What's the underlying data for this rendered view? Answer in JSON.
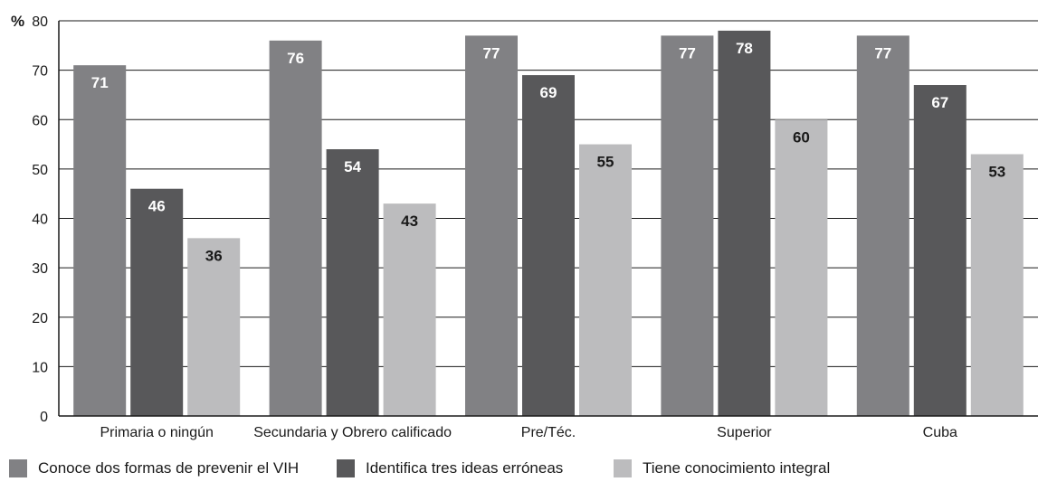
{
  "chart_data": {
    "type": "bar",
    "y_unit": "%",
    "ylim": [
      0,
      80
    ],
    "yticks": [
      "0",
      "10",
      "20",
      "30",
      "40",
      "50",
      "60",
      "70",
      "80"
    ],
    "categories": [
      "Primaria o ningún",
      "Secundaria y Obrero calificado",
      "Pre/Téc.",
      "Superior",
      "Cuba"
    ],
    "series": [
      {
        "name": "Conoce dos formas de prevenir el VIH",
        "color": "#818184",
        "values": [
          71,
          76,
          77,
          77,
          77
        ]
      },
      {
        "name": "Identifica tres ideas erróneas",
        "color": "#58585a",
        "values": [
          46,
          54,
          69,
          78,
          67
        ]
      },
      {
        "name": "Tiene conocimiento integral",
        "color": "#bcbcbe",
        "values": [
          36,
          43,
          55,
          60,
          53
        ]
      }
    ],
    "gridlines": true,
    "legend_position": "bottom"
  }
}
